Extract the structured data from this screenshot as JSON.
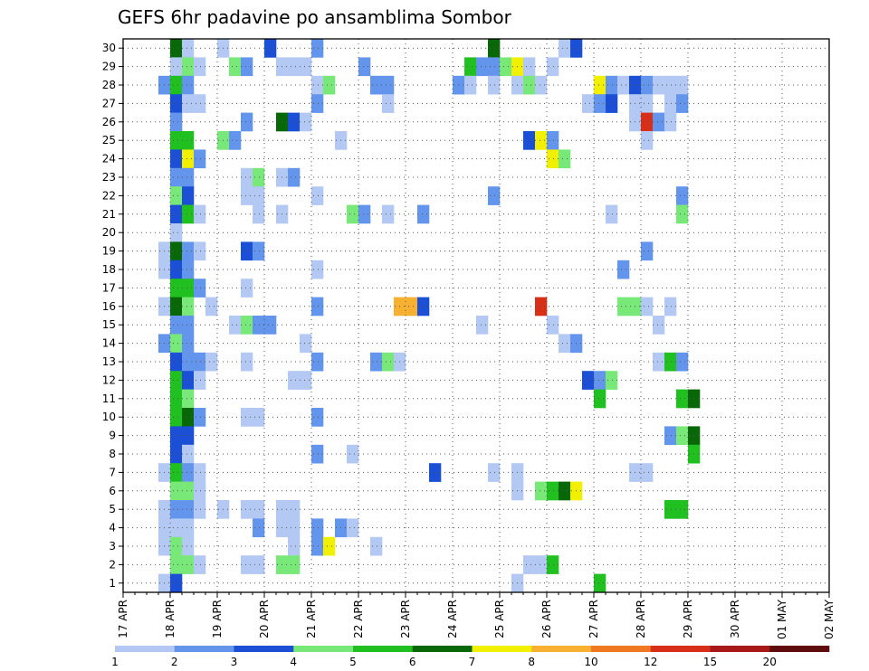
{
  "chart_data": {
    "type": "heatmap",
    "title": "GEFS 6hr padavine po ansamblima Sombor",
    "xlabel": "",
    "ylabel": "",
    "y_ticks": [
      1,
      2,
      3,
      4,
      5,
      6,
      7,
      8,
      9,
      10,
      11,
      12,
      13,
      14,
      15,
      16,
      17,
      18,
      19,
      20,
      21,
      22,
      23,
      24,
      25,
      26,
      27,
      28,
      29,
      30
    ],
    "x_ticks": [
      "17 APR",
      "18 APR",
      "19 APR",
      "20 APR",
      "21 APR",
      "22 APR",
      "23 APR",
      "24 APR",
      "25 APR",
      "26 APR",
      "27 APR",
      "28 APR",
      "29 APR",
      "30 APR",
      "01 MAY",
      "02 MAY"
    ],
    "x_range": [
      0,
      60
    ],
    "y_range": [
      0.5,
      30.5
    ],
    "grid": true,
    "colorbar": {
      "labels": [
        "1",
        "2",
        "3",
        "4",
        "5",
        "6",
        "7",
        "8",
        "10",
        "12",
        "15",
        "20"
      ],
      "colors": [
        "#b4c8f4",
        "#6495ed",
        "#1a4fd6",
        "#78e878",
        "#20c020",
        "#086808",
        "#f0f000",
        "#f8b030",
        "#f07820",
        "#d83018",
        "#a81818",
        "#600c0c"
      ]
    },
    "cells": [
      [
        4,
        30,
        6
      ],
      [
        5,
        30,
        1
      ],
      [
        8,
        30,
        1
      ],
      [
        12,
        30,
        3
      ],
      [
        16,
        30,
        2
      ],
      [
        31,
        30,
        6
      ],
      [
        37,
        30,
        1
      ],
      [
        38,
        30,
        3
      ],
      [
        4,
        29,
        1
      ],
      [
        5,
        29,
        4
      ],
      [
        6,
        29,
        1
      ],
      [
        9,
        29,
        4
      ],
      [
        10,
        29,
        2
      ],
      [
        13,
        29,
        1
      ],
      [
        14,
        29,
        1
      ],
      [
        15,
        29,
        1
      ],
      [
        20,
        29,
        2
      ],
      [
        29,
        29,
        5
      ],
      [
        30,
        29,
        2
      ],
      [
        31,
        29,
        2
      ],
      [
        32,
        29,
        4
      ],
      [
        33,
        29,
        7
      ],
      [
        34,
        29,
        1
      ],
      [
        36,
        29,
        1
      ],
      [
        3,
        28,
        2
      ],
      [
        4,
        28,
        5
      ],
      [
        5,
        28,
        2
      ],
      [
        16,
        28,
        1
      ],
      [
        17,
        28,
        4
      ],
      [
        21,
        28,
        2
      ],
      [
        22,
        28,
        2
      ],
      [
        28,
        28,
        2
      ],
      [
        29,
        28,
        1
      ],
      [
        31,
        28,
        1
      ],
      [
        33,
        28,
        1
      ],
      [
        34,
        28,
        4
      ],
      [
        35,
        28,
        1
      ],
      [
        40,
        28,
        7
      ],
      [
        41,
        28,
        2
      ],
      [
        42,
        28,
        1
      ],
      [
        43,
        28,
        3
      ],
      [
        44,
        28,
        2
      ],
      [
        45,
        28,
        1
      ],
      [
        46,
        28,
        1
      ],
      [
        47,
        28,
        1
      ],
      [
        4,
        27,
        3
      ],
      [
        5,
        27,
        1
      ],
      [
        6,
        27,
        1
      ],
      [
        16,
        27,
        2
      ],
      [
        22,
        27,
        1
      ],
      [
        39,
        27,
        1
      ],
      [
        40,
        27,
        2
      ],
      [
        41,
        27,
        3
      ],
      [
        43,
        27,
        1
      ],
      [
        44,
        27,
        1
      ],
      [
        46,
        27,
        1
      ],
      [
        47,
        27,
        2
      ],
      [
        4,
        26,
        2
      ],
      [
        10,
        26,
        2
      ],
      [
        13,
        26,
        6
      ],
      [
        14,
        26,
        3
      ],
      [
        15,
        26,
        1
      ],
      [
        43,
        26,
        1
      ],
      [
        44,
        26,
        10
      ],
      [
        45,
        26,
        2
      ],
      [
        46,
        26,
        1
      ],
      [
        4,
        25,
        5
      ],
      [
        5,
        25,
        5
      ],
      [
        8,
        25,
        4
      ],
      [
        9,
        25,
        2
      ],
      [
        18,
        25,
        1
      ],
      [
        34,
        25,
        3
      ],
      [
        35,
        25,
        7
      ],
      [
        36,
        25,
        2
      ],
      [
        44,
        25,
        1
      ],
      [
        4,
        24,
        3
      ],
      [
        5,
        24,
        7
      ],
      [
        6,
        24,
        2
      ],
      [
        36,
        24,
        7
      ],
      [
        37,
        24,
        4
      ],
      [
        4,
        23,
        2
      ],
      [
        5,
        23,
        2
      ],
      [
        10,
        23,
        1
      ],
      [
        11,
        23,
        4
      ],
      [
        13,
        23,
        1
      ],
      [
        14,
        23,
        2
      ],
      [
        4,
        22,
        4
      ],
      [
        5,
        22,
        3
      ],
      [
        10,
        22,
        1
      ],
      [
        11,
        22,
        1
      ],
      [
        16,
        22,
        1
      ],
      [
        31,
        22,
        2
      ],
      [
        47,
        22,
        2
      ],
      [
        4,
        21,
        3
      ],
      [
        5,
        21,
        5
      ],
      [
        6,
        21,
        1
      ],
      [
        11,
        21,
        1
      ],
      [
        13,
        21,
        1
      ],
      [
        19,
        21,
        4
      ],
      [
        20,
        21,
        2
      ],
      [
        22,
        21,
        1
      ],
      [
        25,
        21,
        2
      ],
      [
        41,
        21,
        1
      ],
      [
        47,
        21,
        4
      ],
      [
        4,
        20,
        1
      ],
      [
        3,
        19,
        1
      ],
      [
        4,
        19,
        6
      ],
      [
        5,
        19,
        2
      ],
      [
        6,
        19,
        1
      ],
      [
        10,
        19,
        3
      ],
      [
        11,
        19,
        2
      ],
      [
        44,
        19,
        2
      ],
      [
        3,
        18,
        1
      ],
      [
        4,
        18,
        3
      ],
      [
        5,
        18,
        2
      ],
      [
        16,
        18,
        1
      ],
      [
        42,
        18,
        2
      ],
      [
        4,
        17,
        5
      ],
      [
        5,
        17,
        5
      ],
      [
        6,
        17,
        2
      ],
      [
        10,
        17,
        1
      ],
      [
        3,
        16,
        1
      ],
      [
        4,
        16,
        6
      ],
      [
        5,
        16,
        4
      ],
      [
        7,
        16,
        1
      ],
      [
        16,
        16,
        2
      ],
      [
        23,
        16,
        8
      ],
      [
        24,
        16,
        8
      ],
      [
        25,
        16,
        3
      ],
      [
        35,
        16,
        10
      ],
      [
        42,
        16,
        4
      ],
      [
        43,
        16,
        4
      ],
      [
        44,
        16,
        1
      ],
      [
        46,
        16,
        1
      ],
      [
        4,
        15,
        2
      ],
      [
        5,
        15,
        2
      ],
      [
        9,
        15,
        1
      ],
      [
        10,
        15,
        4
      ],
      [
        11,
        15,
        2
      ],
      [
        12,
        15,
        2
      ],
      [
        30,
        15,
        1
      ],
      [
        36,
        15,
        1
      ],
      [
        45,
        15,
        1
      ],
      [
        3,
        14,
        2
      ],
      [
        4,
        14,
        4
      ],
      [
        5,
        14,
        2
      ],
      [
        15,
        14,
        1
      ],
      [
        37,
        14,
        1
      ],
      [
        38,
        14,
        2
      ],
      [
        4,
        13,
        3
      ],
      [
        5,
        13,
        2
      ],
      [
        6,
        13,
        2
      ],
      [
        7,
        13,
        1
      ],
      [
        10,
        13,
        1
      ],
      [
        16,
        13,
        2
      ],
      [
        21,
        13,
        2
      ],
      [
        22,
        13,
        4
      ],
      [
        23,
        13,
        1
      ],
      [
        45,
        13,
        1
      ],
      [
        46,
        13,
        5
      ],
      [
        47,
        13,
        2
      ],
      [
        4,
        12,
        5
      ],
      [
        5,
        12,
        3
      ],
      [
        6,
        12,
        1
      ],
      [
        14,
        12,
        1
      ],
      [
        15,
        12,
        1
      ],
      [
        39,
        12,
        3
      ],
      [
        40,
        12,
        2
      ],
      [
        41,
        12,
        4
      ],
      [
        4,
        11,
        5
      ],
      [
        5,
        11,
        4
      ],
      [
        40,
        11,
        5
      ],
      [
        47,
        11,
        5
      ],
      [
        48,
        11,
        6
      ],
      [
        4,
        10,
        5
      ],
      [
        5,
        10,
        6
      ],
      [
        6,
        10,
        2
      ],
      [
        10,
        10,
        1
      ],
      [
        11,
        10,
        1
      ],
      [
        16,
        10,
        2
      ],
      [
        4,
        9,
        3
      ],
      [
        5,
        9,
        3
      ],
      [
        46,
        9,
        2
      ],
      [
        47,
        9,
        4
      ],
      [
        48,
        9,
        6
      ],
      [
        4,
        8,
        3
      ],
      [
        5,
        8,
        1
      ],
      [
        16,
        8,
        2
      ],
      [
        19,
        8,
        1
      ],
      [
        48,
        8,
        5
      ],
      [
        3,
        7,
        1
      ],
      [
        4,
        7,
        5
      ],
      [
        5,
        7,
        2
      ],
      [
        6,
        7,
        1
      ],
      [
        26,
        7,
        3
      ],
      [
        31,
        7,
        1
      ],
      [
        33,
        7,
        1
      ],
      [
        43,
        7,
        1
      ],
      [
        44,
        7,
        1
      ],
      [
        4,
        6,
        4
      ],
      [
        5,
        6,
        4
      ],
      [
        6,
        6,
        1
      ],
      [
        33,
        6,
        1
      ],
      [
        35,
        6,
        4
      ],
      [
        36,
        6,
        5
      ],
      [
        37,
        6,
        6
      ],
      [
        38,
        6,
        7
      ],
      [
        3,
        5,
        1
      ],
      [
        4,
        5,
        2
      ],
      [
        5,
        5,
        2
      ],
      [
        6,
        5,
        1
      ],
      [
        8,
        5,
        1
      ],
      [
        10,
        5,
        1
      ],
      [
        11,
        5,
        1
      ],
      [
        13,
        5,
        1
      ],
      [
        14,
        5,
        1
      ],
      [
        46,
        5,
        5
      ],
      [
        47,
        5,
        5
      ],
      [
        3,
        4,
        1
      ],
      [
        4,
        4,
        1
      ],
      [
        5,
        4,
        1
      ],
      [
        11,
        4,
        2
      ],
      [
        13,
        4,
        1
      ],
      [
        14,
        4,
        1
      ],
      [
        16,
        4,
        2
      ],
      [
        18,
        4,
        2
      ],
      [
        19,
        4,
        1
      ],
      [
        3,
        3,
        1
      ],
      [
        4,
        3,
        4
      ],
      [
        5,
        3,
        1
      ],
      [
        14,
        3,
        1
      ],
      [
        16,
        3,
        2
      ],
      [
        17,
        3,
        7
      ],
      [
        21,
        3,
        1
      ],
      [
        4,
        2,
        4
      ],
      [
        5,
        2,
        4
      ],
      [
        6,
        2,
        1
      ],
      [
        10,
        2,
        1
      ],
      [
        11,
        2,
        1
      ],
      [
        13,
        2,
        4
      ],
      [
        14,
        2,
        4
      ],
      [
        34,
        2,
        1
      ],
      [
        35,
        2,
        1
      ],
      [
        36,
        2,
        5
      ],
      [
        3,
        1,
        1
      ],
      [
        4,
        1,
        3
      ],
      [
        33,
        1,
        1
      ],
      [
        40,
        1,
        5
      ]
    ]
  }
}
